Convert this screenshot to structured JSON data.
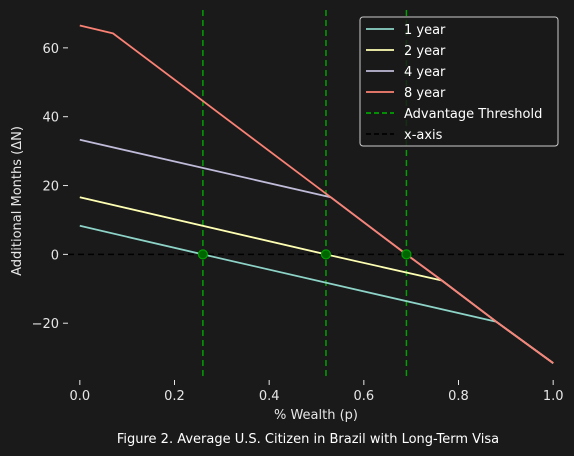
{
  "chart_data": {
    "type": "line",
    "xlabel": "% Wealth (p)",
    "ylabel": "Additional Months (ΔN)",
    "caption": "Figure 2. Average U.S. Citizen in Brazil with Long-Term Visa",
    "xlim": [
      -0.025,
      1.025
    ],
    "ylim": [
      -36.5,
      71
    ],
    "x_ticks": [
      0.0,
      0.2,
      0.4,
      0.6,
      0.8,
      1.0
    ],
    "x_tick_labels": [
      "0.0",
      "0.2",
      "0.4",
      "0.6",
      "0.8",
      "1.0"
    ],
    "y_ticks": [
      -20,
      0,
      20,
      40,
      60
    ],
    "y_tick_labels": [
      "−20",
      "0",
      "20",
      "40",
      "60"
    ],
    "grid": false,
    "legend_position": "top-right",
    "series": [
      {
        "name": "1 year",
        "color": "#8dd3c7",
        "x": [
          0.0,
          0.26,
          0.88,
          1.0
        ],
        "y": [
          8.3,
          0.0,
          -19.6,
          -31.6
        ]
      },
      {
        "name": "2 year",
        "color": "#feffb3",
        "x": [
          0.0,
          0.52,
          0.765,
          0.88,
          1.0
        ],
        "y": [
          16.6,
          0.0,
          -7.6,
          -19.6,
          -31.6
        ]
      },
      {
        "name": "4 year",
        "color": "#bfbbd9",
        "x": [
          0.0,
          0.53,
          0.69,
          0.765,
          0.88,
          1.0
        ],
        "y": [
          33.3,
          16.6,
          0.0,
          -7.6,
          -19.6,
          -31.6
        ]
      },
      {
        "name": "8 year",
        "color": "#fa8174",
        "x": [
          0.0,
          0.07,
          0.53,
          0.69,
          0.765,
          0.88,
          1.0
        ],
        "y": [
          66.5,
          64.2,
          16.6,
          0.0,
          -7.6,
          -19.6,
          -31.6
        ]
      }
    ],
    "threshold": {
      "name": "Advantage Threshold",
      "color": "#00a000",
      "x": [
        0.26,
        0.52,
        0.69
      ]
    },
    "threshold_points": [
      {
        "x": 0.26,
        "y": 0
      },
      {
        "x": 0.52,
        "y": 0
      },
      {
        "x": 0.69,
        "y": 0
      }
    ],
    "x_axis_line": {
      "name": "x-axis",
      "color": "#000000",
      "y": 0
    }
  }
}
